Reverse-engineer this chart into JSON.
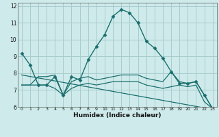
{
  "xlabel": "Humidex (Indice chaleur)",
  "bg_color": "#ceeaea",
  "grid_color": "#a8cccc",
  "line_color": "#1a6e6e",
  "xlim": [
    -0.5,
    23.5
  ],
  "ylim": [
    6,
    12.2
  ],
  "yticks": [
    6,
    7,
    8,
    9,
    10,
    11,
    12
  ],
  "xticks": [
    0,
    1,
    2,
    3,
    4,
    5,
    6,
    7,
    8,
    9,
    10,
    11,
    12,
    13,
    14,
    15,
    16,
    17,
    18,
    19,
    20,
    21,
    22,
    23
  ],
  "lines": [
    {
      "x": [
        0,
        1,
        2,
        3,
        4,
        5,
        6,
        7,
        8,
        9,
        10,
        11,
        12,
        13,
        14,
        15,
        16,
        17,
        18,
        19,
        20,
        21,
        22,
        23
      ],
      "y": [
        9.2,
        8.5,
        7.3,
        7.3,
        7.8,
        6.7,
        7.8,
        7.6,
        8.8,
        9.6,
        10.3,
        11.4,
        11.8,
        11.6,
        11.0,
        9.9,
        9.5,
        8.9,
        8.1,
        7.4,
        7.4,
        7.5,
        6.7,
        5.9
      ],
      "marker": "D",
      "markersize": 2.5,
      "linewidth": 1.0
    },
    {
      "x": [
        0,
        1,
        2,
        3,
        4,
        5,
        6,
        7,
        8,
        9,
        10,
        11,
        12,
        13,
        14,
        15,
        16,
        17,
        18,
        19,
        20,
        21,
        22,
        23
      ],
      "y": [
        7.3,
        7.3,
        7.8,
        7.8,
        7.9,
        6.7,
        7.5,
        7.7,
        7.8,
        7.6,
        7.7,
        7.8,
        7.9,
        7.9,
        7.9,
        7.7,
        7.6,
        7.5,
        8.1,
        7.5,
        7.4,
        7.5,
        6.7,
        5.9
      ],
      "marker": null,
      "markersize": 0,
      "linewidth": 0.9
    },
    {
      "x": [
        0,
        1,
        2,
        3,
        4,
        5,
        6,
        7,
        8,
        9,
        10,
        11,
        12,
        13,
        14,
        15,
        16,
        17,
        18,
        19,
        20,
        21,
        22,
        23
      ],
      "y": [
        7.3,
        7.3,
        7.3,
        7.3,
        7.1,
        6.7,
        7.1,
        7.3,
        7.4,
        7.3,
        7.4,
        7.5,
        7.5,
        7.5,
        7.5,
        7.3,
        7.2,
        7.1,
        7.2,
        7.3,
        7.2,
        7.3,
        6.3,
        5.9
      ],
      "marker": null,
      "markersize": 0,
      "linewidth": 0.9
    },
    {
      "x": [
        0,
        23
      ],
      "y": [
        7.9,
        5.85
      ],
      "marker": null,
      "markersize": 0,
      "linewidth": 0.9
    }
  ]
}
